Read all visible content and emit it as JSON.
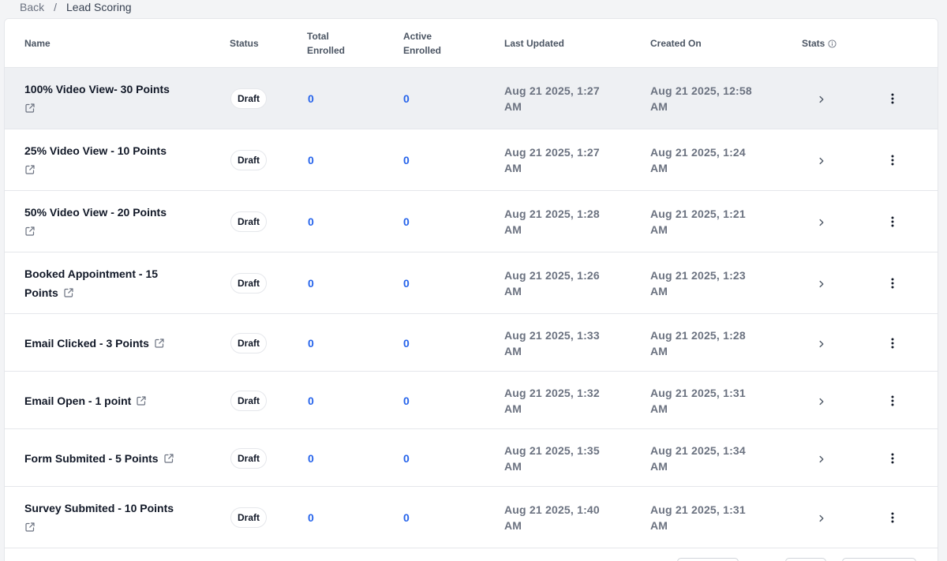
{
  "breadcrumb": {
    "back": "Back",
    "separator": "/",
    "current": "Lead Scoring"
  },
  "table": {
    "headers": {
      "name": "Name",
      "status": "Status",
      "total_l1": "Total",
      "total_l2": "Enrolled",
      "active_l1": "Active",
      "active_l2": "Enrolled",
      "last_updated": "Last Updated",
      "created_on": "Created On",
      "stats": "Stats"
    },
    "rows": [
      {
        "name_l1": "100% Video View- 30 Points",
        "name_l2": "",
        "status": "Draft",
        "total": "0",
        "active": "0",
        "updated_l1": "Aug 21 2025, 1:27",
        "updated_l2": "AM",
        "created_l1": "Aug 21 2025, 12:58",
        "created_l2": "AM"
      },
      {
        "name_l1": "25% Video View - 10 Points",
        "name_l2": "",
        "status": "Draft",
        "total": "0",
        "active": "0",
        "updated_l1": "Aug 21 2025, 1:27",
        "updated_l2": "AM",
        "created_l1": "Aug 21 2025, 1:24",
        "created_l2": "AM"
      },
      {
        "name_l1": "50% Video View - 20 Points",
        "name_l2": "",
        "status": "Draft",
        "total": "0",
        "active": "0",
        "updated_l1": "Aug 21 2025, 1:28",
        "updated_l2": "AM",
        "created_l1": "Aug 21 2025, 1:21",
        "created_l2": "AM"
      },
      {
        "name_l1": "Booked Appointment - 15",
        "name_l2": "Points",
        "status": "Draft",
        "total": "0",
        "active": "0",
        "updated_l1": "Aug 21 2025, 1:26",
        "updated_l2": "AM",
        "created_l1": "Aug 21 2025, 1:23",
        "created_l2": "AM"
      },
      {
        "name_l1": "Email Clicked - 3 Points",
        "name_l2": "",
        "status": "Draft",
        "total": "0",
        "active": "0",
        "updated_l1": "Aug 21 2025, 1:33",
        "updated_l2": "AM",
        "created_l1": "Aug 21 2025, 1:28",
        "created_l2": "AM"
      },
      {
        "name_l1": "Email Open - 1 point",
        "name_l2": "",
        "status": "Draft",
        "total": "0",
        "active": "0",
        "updated_l1": "Aug 21 2025, 1:32",
        "updated_l2": "AM",
        "created_l1": "Aug 21 2025, 1:31",
        "created_l2": "AM"
      },
      {
        "name_l1": "Form Submited - 5 Points",
        "name_l2": "",
        "status": "Draft",
        "total": "0",
        "active": "0",
        "updated_l1": "Aug 21 2025, 1:35",
        "updated_l2": "AM",
        "created_l1": "Aug 21 2025, 1:34",
        "created_l2": "AM"
      },
      {
        "name_l1": "Survey Submited - 10 Points",
        "name_l2": "",
        "status": "Draft",
        "total": "0",
        "active": "0",
        "updated_l1": "Aug 21 2025, 1:40",
        "updated_l2": "AM",
        "created_l1": "Aug 21 2025, 1:31",
        "created_l2": "AM"
      }
    ]
  },
  "icons": {
    "external_link": "external-link-icon",
    "info": "info-icon",
    "chevron": "chevron-right-icon",
    "menu": "more-vertical-icon"
  },
  "colors": {
    "link_blue": "#2563eb",
    "muted": "#6b7280",
    "highlight_row": "#eef0f3"
  }
}
